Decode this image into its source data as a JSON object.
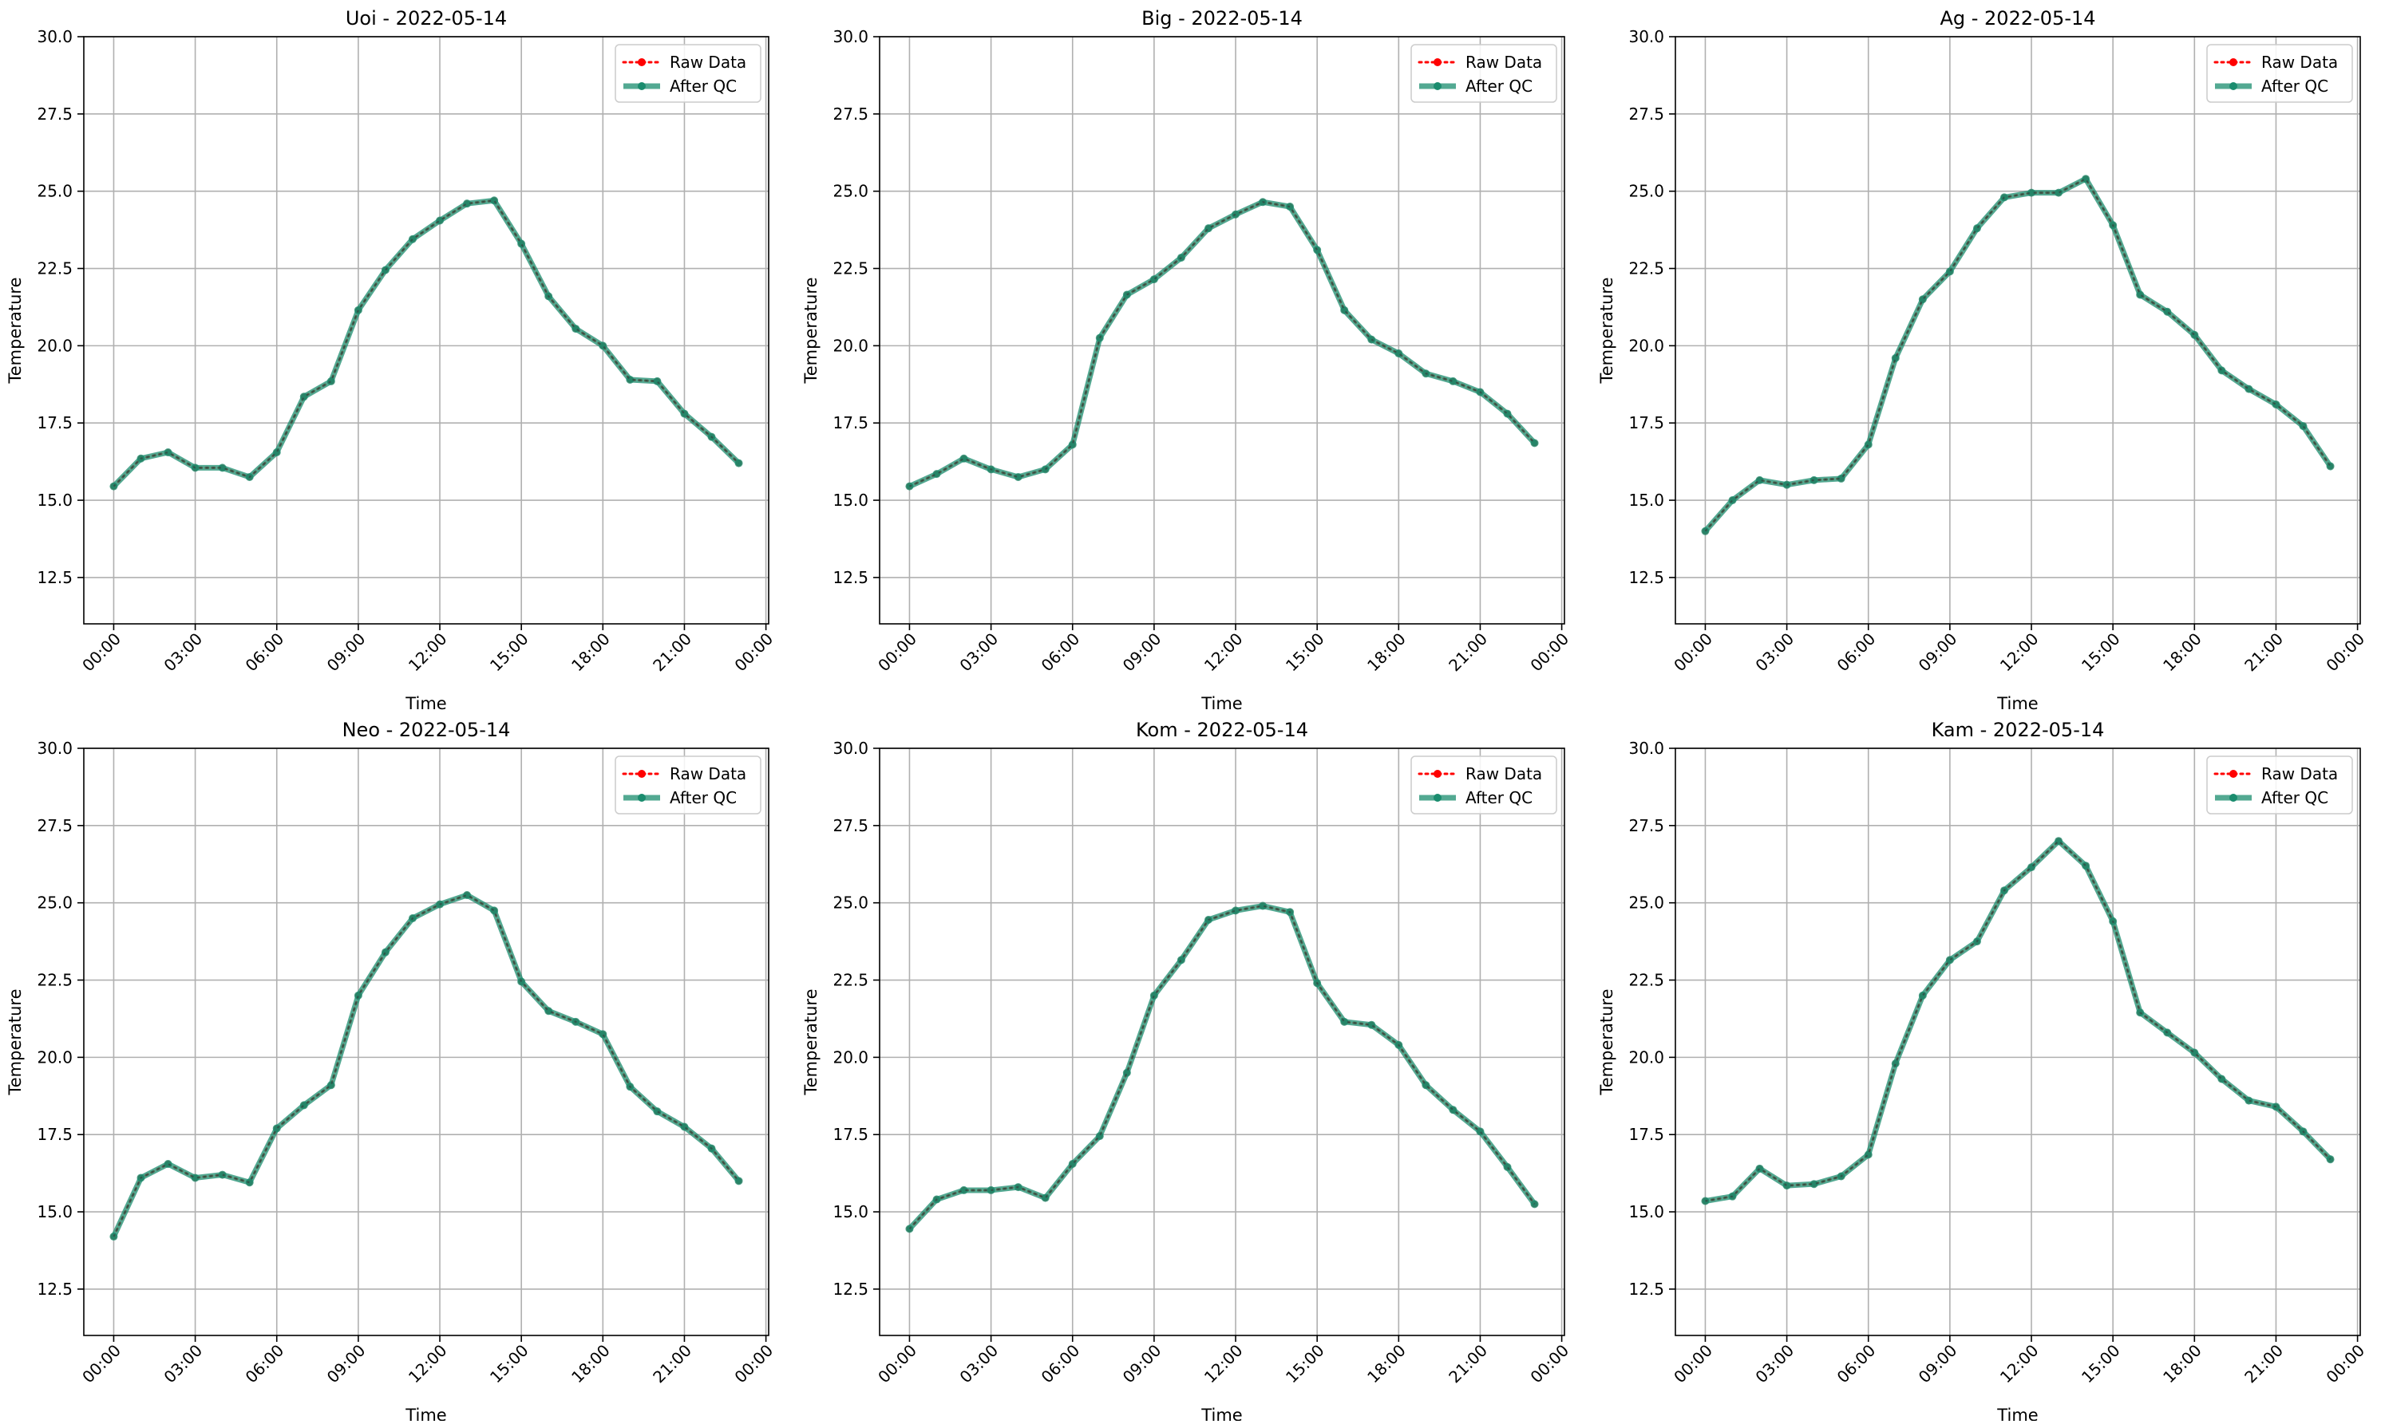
{
  "chart_data": [
    {
      "type": "line",
      "title": "Uoi - 2022-05-14",
      "xlabel": "Time",
      "ylabel": "Temperature",
      "ylim": [
        11.0,
        30.0
      ],
      "xlim": [
        "2022-05-13 22:54",
        "2022-05-15 00:06"
      ],
      "y_ticks": [
        "12.5",
        "15.0",
        "17.5",
        "20.0",
        "22.5",
        "25.0",
        "27.5",
        "30.0"
      ],
      "x_ticks": [
        "00:00",
        "03:00",
        "06:00",
        "09:00",
        "12:00",
        "15:00",
        "18:00",
        "21:00",
        "00:00"
      ],
      "grid": true,
      "legend_position": "upper right",
      "x": [
        "00:00",
        "01:00",
        "02:00",
        "03:00",
        "04:00",
        "05:00",
        "06:00",
        "07:00",
        "08:00",
        "09:00",
        "10:00",
        "11:00",
        "12:00",
        "13:00",
        "14:00",
        "15:00",
        "16:00",
        "17:00",
        "18:00",
        "19:00",
        "20:00",
        "21:00",
        "22:00",
        "23:00"
      ],
      "series": [
        {
          "name": "Raw Data",
          "color": "#ff0000",
          "style": "dotted",
          "values": [
            15.45,
            16.35,
            16.55,
            16.05,
            16.05,
            15.75,
            16.55,
            18.35,
            18.85,
            21.15,
            22.45,
            23.45,
            24.05,
            24.6,
            24.7,
            23.3,
            21.6,
            20.55,
            20.0,
            18.9,
            18.85,
            17.8,
            17.05,
            16.2
          ]
        },
        {
          "name": "After QC",
          "color": "#1a8c6e",
          "style": "solid",
          "values": [
            15.45,
            16.35,
            16.55,
            16.05,
            16.05,
            15.75,
            16.55,
            18.35,
            18.85,
            21.15,
            22.45,
            23.45,
            24.05,
            24.6,
            24.7,
            23.3,
            21.6,
            20.55,
            20.0,
            18.9,
            18.85,
            17.8,
            17.05,
            16.2
          ]
        }
      ]
    },
    {
      "type": "line",
      "title": "Big - 2022-05-14",
      "xlabel": "Time",
      "ylabel": "Temperature",
      "ylim": [
        11.0,
        30.0
      ],
      "xlim": [
        "2022-05-13 22:54",
        "2022-05-15 00:06"
      ],
      "y_ticks": [
        "12.5",
        "15.0",
        "17.5",
        "20.0",
        "22.5",
        "25.0",
        "27.5",
        "30.0"
      ],
      "x_ticks": [
        "00:00",
        "03:00",
        "06:00",
        "09:00",
        "12:00",
        "15:00",
        "18:00",
        "21:00",
        "00:00"
      ],
      "grid": true,
      "legend_position": "upper right",
      "x": [
        "00:00",
        "01:00",
        "02:00",
        "03:00",
        "04:00",
        "05:00",
        "06:00",
        "07:00",
        "08:00",
        "09:00",
        "10:00",
        "11:00",
        "12:00",
        "13:00",
        "14:00",
        "15:00",
        "16:00",
        "17:00",
        "18:00",
        "19:00",
        "20:00",
        "21:00",
        "22:00",
        "23:00"
      ],
      "series": [
        {
          "name": "Raw Data",
          "color": "#ff0000",
          "style": "dotted",
          "values": [
            15.45,
            15.85,
            16.35,
            16.0,
            15.75,
            16.0,
            16.8,
            20.25,
            21.65,
            22.15,
            22.85,
            23.8,
            24.25,
            24.65,
            24.5,
            23.1,
            21.15,
            20.2,
            19.75,
            19.1,
            18.85,
            18.5,
            17.8,
            16.85
          ]
        },
        {
          "name": "After QC",
          "color": "#1a8c6e",
          "style": "solid",
          "values": [
            15.45,
            15.85,
            16.35,
            16.0,
            15.75,
            16.0,
            16.8,
            20.25,
            21.65,
            22.15,
            22.85,
            23.8,
            24.25,
            24.65,
            24.5,
            23.1,
            21.15,
            20.2,
            19.75,
            19.1,
            18.85,
            18.5,
            17.8,
            16.85
          ]
        }
      ]
    },
    {
      "type": "line",
      "title": "Ag - 2022-05-14",
      "xlabel": "Time",
      "ylabel": "Temperature",
      "ylim": [
        11.0,
        30.0
      ],
      "xlim": [
        "2022-05-13 22:54",
        "2022-05-15 00:06"
      ],
      "y_ticks": [
        "12.5",
        "15.0",
        "17.5",
        "20.0",
        "22.5",
        "25.0",
        "27.5",
        "30.0"
      ],
      "x_ticks": [
        "00:00",
        "03:00",
        "06:00",
        "09:00",
        "12:00",
        "15:00",
        "18:00",
        "21:00",
        "00:00"
      ],
      "grid": true,
      "legend_position": "upper right",
      "x": [
        "00:00",
        "01:00",
        "02:00",
        "03:00",
        "04:00",
        "05:00",
        "06:00",
        "07:00",
        "08:00",
        "09:00",
        "10:00",
        "11:00",
        "12:00",
        "13:00",
        "14:00",
        "15:00",
        "16:00",
        "17:00",
        "18:00",
        "19:00",
        "20:00",
        "21:00",
        "22:00",
        "23:00"
      ],
      "series": [
        {
          "name": "Raw Data",
          "color": "#ff0000",
          "style": "dotted",
          "values": [
            14.0,
            15.0,
            15.65,
            15.5,
            15.65,
            15.7,
            16.8,
            19.6,
            21.5,
            22.4,
            23.8,
            24.8,
            24.95,
            24.95,
            25.4,
            23.9,
            21.65,
            21.1,
            20.35,
            19.2,
            18.6,
            18.1,
            17.4,
            16.1
          ]
        },
        {
          "name": "After QC",
          "color": "#1a8c6e",
          "style": "solid",
          "values": [
            14.0,
            15.0,
            15.65,
            15.5,
            15.65,
            15.7,
            16.8,
            19.6,
            21.5,
            22.4,
            23.8,
            24.8,
            24.95,
            24.95,
            25.4,
            23.9,
            21.65,
            21.1,
            20.35,
            19.2,
            18.6,
            18.1,
            17.4,
            16.1
          ]
        }
      ]
    },
    {
      "type": "line",
      "title": "Neo - 2022-05-14",
      "xlabel": "Time",
      "ylabel": "Temperature",
      "ylim": [
        11.0,
        30.0
      ],
      "xlim": [
        "2022-05-13 22:54",
        "2022-05-15 00:06"
      ],
      "y_ticks": [
        "12.5",
        "15.0",
        "17.5",
        "20.0",
        "22.5",
        "25.0",
        "27.5",
        "30.0"
      ],
      "x_ticks": [
        "00:00",
        "03:00",
        "06:00",
        "09:00",
        "12:00",
        "15:00",
        "18:00",
        "21:00",
        "00:00"
      ],
      "grid": true,
      "legend_position": "upper right",
      "x": [
        "00:00",
        "01:00",
        "02:00",
        "03:00",
        "04:00",
        "05:00",
        "06:00",
        "07:00",
        "08:00",
        "09:00",
        "10:00",
        "11:00",
        "12:00",
        "13:00",
        "14:00",
        "15:00",
        "16:00",
        "17:00",
        "18:00",
        "19:00",
        "20:00",
        "21:00",
        "22:00",
        "23:00"
      ],
      "series": [
        {
          "name": "Raw Data",
          "color": "#ff0000",
          "style": "dotted",
          "values": [
            14.2,
            16.1,
            16.55,
            16.1,
            16.2,
            15.95,
            17.7,
            18.45,
            19.1,
            22.0,
            23.4,
            24.5,
            24.95,
            25.25,
            24.75,
            22.45,
            21.5,
            21.15,
            20.75,
            19.05,
            18.25,
            17.75,
            17.05,
            16.0
          ]
        },
        {
          "name": "After QC",
          "color": "#1a8c6e",
          "style": "solid",
          "values": [
            14.2,
            16.1,
            16.55,
            16.1,
            16.2,
            15.95,
            17.7,
            18.45,
            19.1,
            22.0,
            23.4,
            24.5,
            24.95,
            25.25,
            24.75,
            22.45,
            21.5,
            21.15,
            20.75,
            19.05,
            18.25,
            17.75,
            17.05,
            16.0
          ]
        }
      ]
    },
    {
      "type": "line",
      "title": "Kom - 2022-05-14",
      "xlabel": "Time",
      "ylabel": "Temperature",
      "ylim": [
        11.0,
        30.0
      ],
      "xlim": [
        "2022-05-13 22:54",
        "2022-05-15 00:06"
      ],
      "y_ticks": [
        "12.5",
        "15.0",
        "17.5",
        "20.0",
        "22.5",
        "25.0",
        "27.5",
        "30.0"
      ],
      "x_ticks": [
        "00:00",
        "03:00",
        "06:00",
        "09:00",
        "12:00",
        "15:00",
        "18:00",
        "21:00",
        "00:00"
      ],
      "grid": true,
      "legend_position": "upper right",
      "x": [
        "00:00",
        "01:00",
        "02:00",
        "03:00",
        "04:00",
        "05:00",
        "06:00",
        "07:00",
        "08:00",
        "09:00",
        "10:00",
        "11:00",
        "12:00",
        "13:00",
        "14:00",
        "15:00",
        "16:00",
        "17:00",
        "18:00",
        "19:00",
        "20:00",
        "21:00",
        "22:00",
        "23:00"
      ],
      "series": [
        {
          "name": "Raw Data",
          "color": "#ff0000",
          "style": "dotted",
          "values": [
            14.45,
            15.4,
            15.7,
            15.7,
            15.8,
            15.45,
            16.55,
            17.45,
            19.5,
            22.0,
            23.15,
            24.45,
            24.75,
            24.9,
            24.7,
            22.4,
            21.15,
            21.05,
            20.4,
            19.1,
            18.3,
            17.6,
            16.45,
            15.25
          ]
        },
        {
          "name": "After QC",
          "color": "#1a8c6e",
          "style": "solid",
          "values": [
            14.45,
            15.4,
            15.7,
            15.7,
            15.8,
            15.45,
            16.55,
            17.45,
            19.5,
            22.0,
            23.15,
            24.45,
            24.75,
            24.9,
            24.7,
            22.4,
            21.15,
            21.05,
            20.4,
            19.1,
            18.3,
            17.6,
            16.45,
            15.25
          ]
        }
      ]
    },
    {
      "type": "line",
      "title": "Kam - 2022-05-14",
      "xlabel": "Time",
      "ylabel": "Temperature",
      "ylim": [
        11.0,
        30.0
      ],
      "xlim": [
        "2022-05-13 22:54",
        "2022-05-15 00:06"
      ],
      "y_ticks": [
        "12.5",
        "15.0",
        "17.5",
        "20.0",
        "22.5",
        "25.0",
        "27.5",
        "30.0"
      ],
      "x_ticks": [
        "00:00",
        "03:00",
        "06:00",
        "09:00",
        "12:00",
        "15:00",
        "18:00",
        "21:00",
        "00:00"
      ],
      "grid": true,
      "legend_position": "upper right",
      "x": [
        "00:00",
        "01:00",
        "02:00",
        "03:00",
        "04:00",
        "05:00",
        "06:00",
        "07:00",
        "08:00",
        "09:00",
        "10:00",
        "11:00",
        "12:00",
        "13:00",
        "14:00",
        "15:00",
        "16:00",
        "17:00",
        "18:00",
        "19:00",
        "20:00",
        "21:00",
        "22:00",
        "23:00"
      ],
      "series": [
        {
          "name": "Raw Data",
          "color": "#ff0000",
          "style": "dotted",
          "values": [
            15.35,
            15.5,
            16.4,
            15.85,
            15.9,
            16.15,
            16.85,
            19.8,
            22.0,
            23.15,
            23.75,
            25.4,
            26.15,
            27.0,
            26.2,
            24.4,
            21.45,
            20.8,
            20.15,
            19.3,
            18.6,
            18.4,
            17.6,
            16.7
          ]
        },
        {
          "name": "After QC",
          "color": "#1a8c6e",
          "style": "solid",
          "values": [
            15.35,
            15.5,
            16.4,
            15.85,
            15.9,
            16.15,
            16.85,
            19.8,
            22.0,
            23.15,
            23.75,
            25.4,
            26.15,
            27.0,
            26.2,
            24.4,
            21.45,
            20.8,
            20.15,
            19.3,
            18.6,
            18.4,
            17.6,
            16.7
          ]
        }
      ]
    }
  ]
}
